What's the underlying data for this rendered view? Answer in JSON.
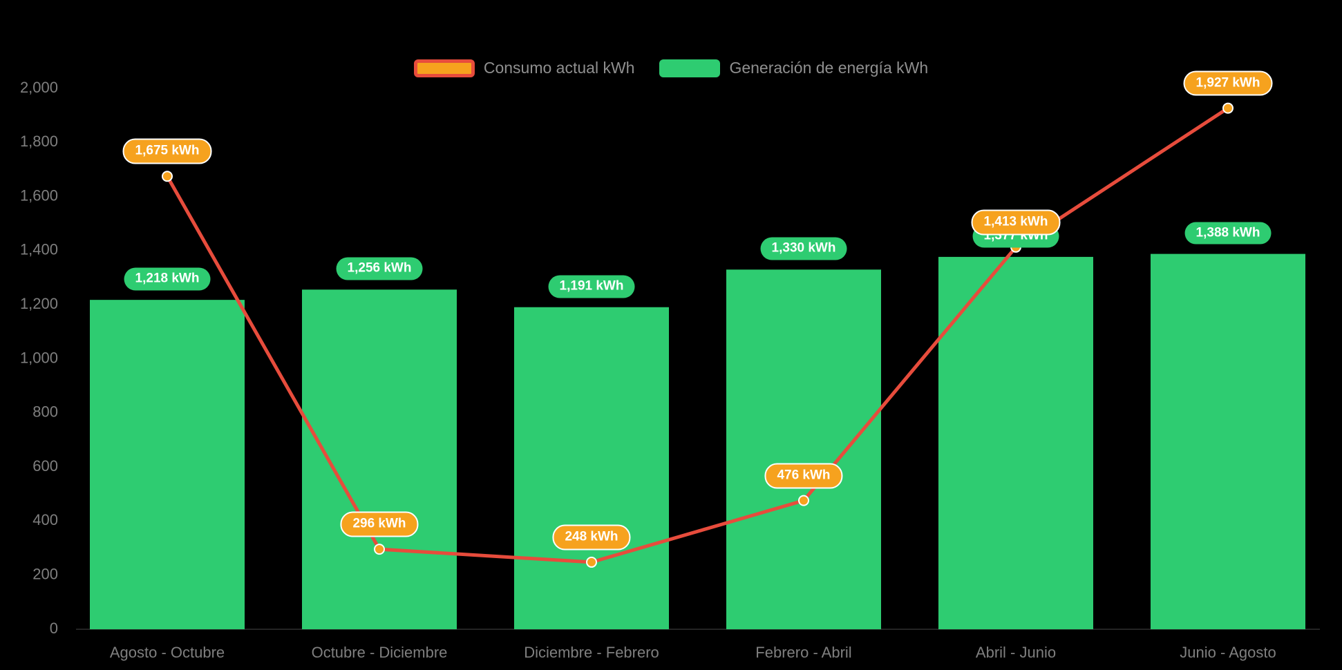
{
  "background": "#000000",
  "colors": {
    "bar": "#2ECC71",
    "line": "#E74C3C",
    "marker": "#F6A21E",
    "axis_text": "#7f7f7f",
    "label_text": "#ffffff"
  },
  "legend": {
    "items": [
      {
        "label": "Consumo actual kWh",
        "type": "line"
      },
      {
        "label": "Generación de energía kWh",
        "type": "bar"
      }
    ]
  },
  "chart_data": {
    "type": "bar+line",
    "title": "",
    "xlabel": "",
    "ylabel": "",
    "grid": false,
    "legend_position": "top-center",
    "categories": [
      "Agosto - Octubre",
      "Octubre - Diciembre",
      "Diciembre - Febrero",
      "Febrero - Abril",
      "Abril - Junio",
      "Junio - Agosto"
    ],
    "series": [
      {
        "name": "Generación de energía kWh",
        "type": "bar",
        "color": "#2ECC71",
        "values": [
          1218,
          1256,
          1191,
          1330,
          1377,
          1388
        ],
        "labels": [
          "1,218 kWh",
          "1,256 kWh",
          "1,191 kWh",
          "1,330 kWh",
          "1,377 kWh",
          "1,388 kWh"
        ]
      },
      {
        "name": "Consumo actual kWh",
        "type": "line",
        "color": "#E74C3C",
        "marker_color": "#F6A21E",
        "values": [
          1675,
          296,
          248,
          476,
          1413,
          1927
        ],
        "labels": [
          "1,675 kWh",
          "296 kWh",
          "248 kWh",
          "476 kWh",
          "1,413 kWh",
          "1,927 kWh"
        ]
      }
    ],
    "y_axis": {
      "min": 0,
      "max": 2000,
      "step": 200,
      "tick_labels": [
        "0",
        "200",
        "400",
        "600",
        "800",
        "1,000",
        "1,200",
        "1,400",
        "1,600",
        "1,800",
        "2,000"
      ]
    }
  }
}
